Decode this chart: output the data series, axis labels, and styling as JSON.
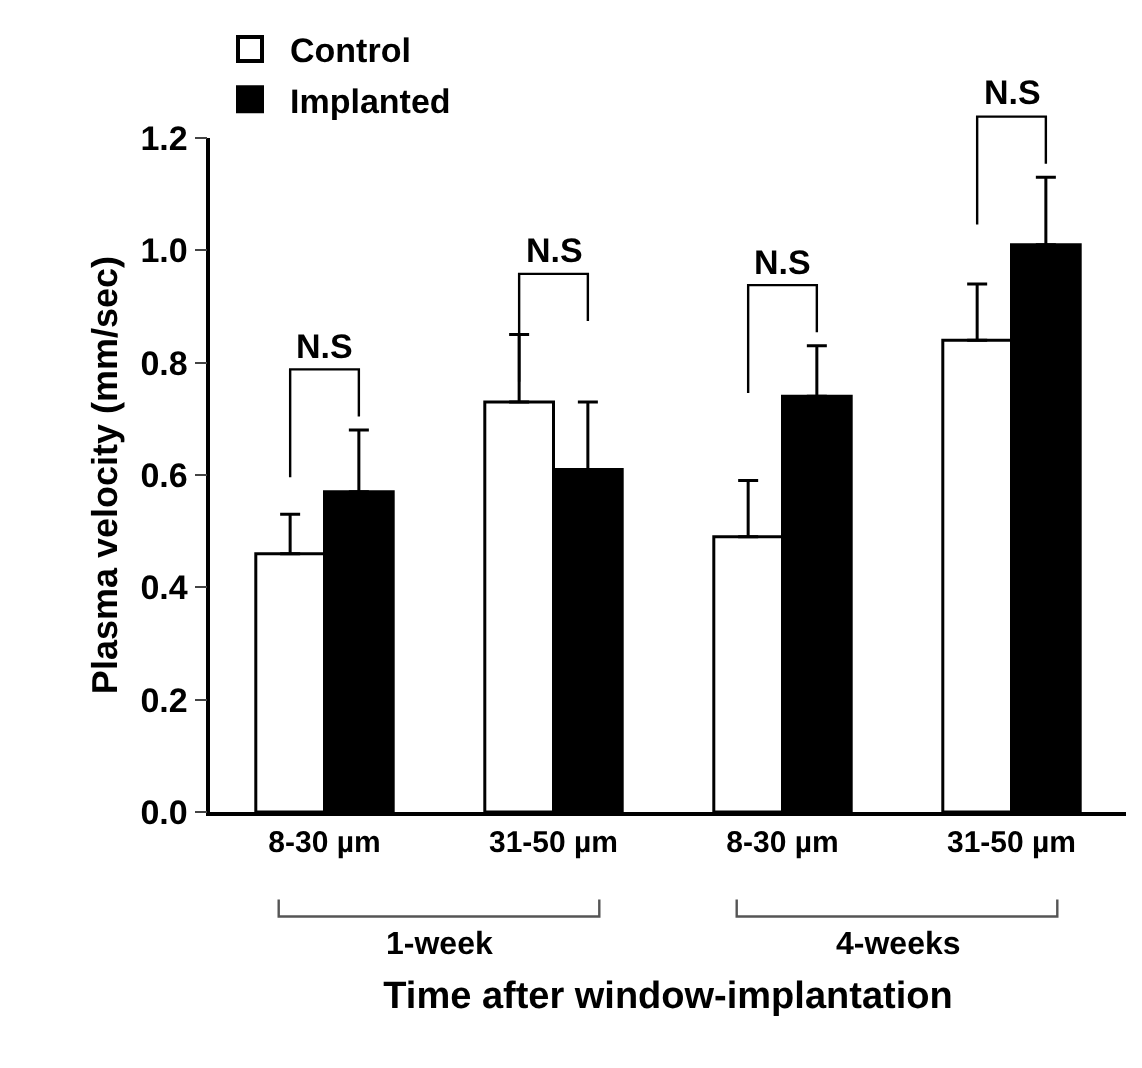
{
  "chart_data": {
    "type": "bar",
    "categories": [
      "8-30 µm",
      "31-50 µm",
      "8-30 µm",
      "31-50 µm"
    ],
    "series": [
      {
        "name": "Control",
        "color": "#ffffff",
        "values": [
          0.46,
          0.73,
          0.49,
          0.84
        ],
        "errors": [
          [
            0.46,
            0.53
          ],
          [
            0.73,
            0.85
          ],
          [
            0.49,
            0.59
          ],
          [
            0.84,
            0.94
          ]
        ]
      },
      {
        "name": "Implanted",
        "color": "#000000",
        "values": [
          0.57,
          0.61,
          0.74,
          1.01
        ],
        "errors": [
          [
            0.57,
            0.68
          ],
          [
            0.61,
            0.73
          ],
          [
            0.74,
            0.83
          ],
          [
            1.01,
            1.13
          ]
        ]
      }
    ],
    "xlabel": "Time after window-implantation",
    "ylabel": "Plasma velocity (mm/sec)",
    "ylim": [
      0,
      1.2
    ],
    "yticks": [
      {
        "value": 0,
        "label": "0.0"
      },
      {
        "value": 0.2,
        "label": "0.2"
      },
      {
        "value": 0.4,
        "label": "0.4"
      },
      {
        "value": 0.6,
        "label": "0.6"
      },
      {
        "value": 0.8,
        "label": "0.8"
      },
      {
        "value": 1,
        "label": "1.0"
      },
      {
        "value": 1.2,
        "label": "1.2"
      }
    ],
    "annotations": [
      "N.S",
      "N.S",
      "N.S",
      "N.S",
      "1-week",
      "4-weeks"
    ],
    "grid": false,
    "legend": "top left"
  }
}
